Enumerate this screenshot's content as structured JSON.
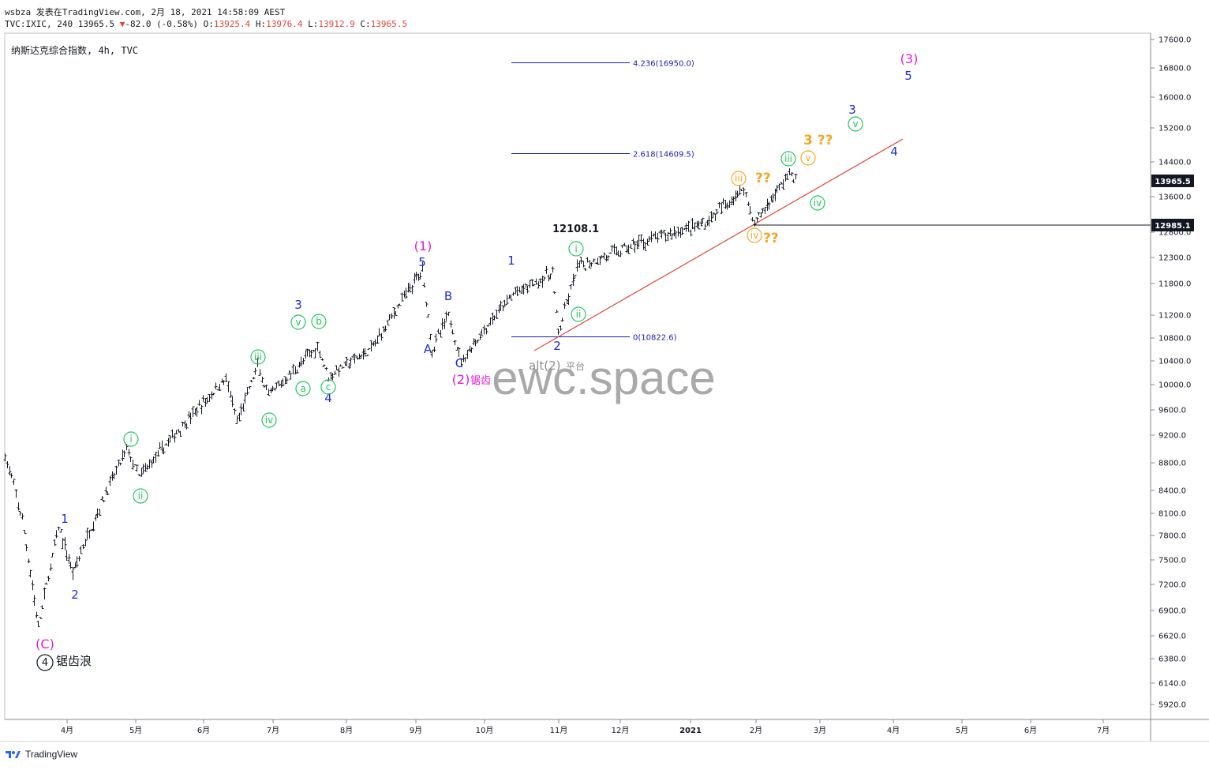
{
  "header": {
    "user": "wsbza",
    "published_text": "发表在TradingView.com, 2月 18, 2021 14:58:09 AEST",
    "symbol": "TVC:IXIC, 240",
    "last": "13965.5",
    "arrow": "▼",
    "change": "-82.0 (-0.58%)",
    "o_label": "O:",
    "o": "13925.4",
    "h_label": "H:",
    "h": "13976.4",
    "l_label": "L:",
    "l": "13912.9",
    "c_label": "C:",
    "c": "13965.5"
  },
  "chart_title": "纳斯达克综合指数, 4h, TVC",
  "watermark": "ewc.space",
  "footer": {
    "brand": "TradingView"
  },
  "colors": {
    "bars": "#131722",
    "trendline": "#e0443a",
    "fib": "#1b1bb3",
    "wave_blue": "#1f2bd6",
    "wave_green": "#22c55e",
    "wave_orange": "#f5a623",
    "wave_magenta": "#e21bd1",
    "price_tag": "#131722"
  },
  "chart_data": {
    "type": "ohlc-bar",
    "interval": "4h",
    "y_axis_ticks": [
      "17600.0",
      "16800.0",
      "16000.0",
      "15200.0",
      "14400.0",
      "13600.0",
      "12800.0",
      "12300.0",
      "11800.0",
      "11200.0",
      "10800.0",
      "10400.0",
      "10000.0",
      "9600.0",
      "9200.0",
      "8800.0",
      "8400.0",
      "8100.0",
      "7800.0",
      "7500.0",
      "7200.0",
      "6900.0",
      "6620.0",
      "6380.0",
      "6140.0",
      "5920.0"
    ],
    "x_axis_ticks": [
      "4月",
      "5月",
      "6月",
      "7月",
      "8月",
      "9月",
      "10月",
      "11月",
      "12月",
      "2021",
      "2月",
      "3月",
      "4月",
      "5月",
      "6月",
      "7月"
    ],
    "price_tags": {
      "last": "13965.5",
      "level": "12985.1"
    },
    "fib_levels": [
      {
        "label": "4.236(16950.0)",
        "value": 16950.0
      },
      {
        "label": "2.618(14609.5)",
        "value": 14609.5
      },
      {
        "label": "0(10822.6)",
        "value": 10822.6
      }
    ],
    "high_label": "12108.1",
    "path_points": [
      [
        "3月",
        8900
      ],
      [
        "3月",
        8000
      ],
      [
        "3月",
        6700
      ],
      [
        "4月",
        7900
      ],
      [
        "4月",
        7350
      ],
      [
        "5月",
        9000
      ],
      [
        "5月",
        8600
      ],
      [
        "6月",
        10100
      ],
      [
        "6月",
        9400
      ],
      [
        "7月",
        10300
      ],
      [
        "7月",
        9800
      ],
      [
        "7月",
        10650
      ],
      [
        "8月",
        10150
      ],
      [
        "8月",
        10600
      ],
      [
        "9月",
        12070
      ],
      [
        "9月",
        10600
      ],
      [
        "9月",
        11200
      ],
      [
        "10月",
        10400
      ],
      [
        "10月",
        11600
      ],
      [
        "10月",
        12000
      ],
      [
        "11月",
        10850
      ],
      [
        "11月",
        12100
      ],
      [
        "12月",
        12600
      ],
      [
        "2021",
        13000
      ],
      [
        "2月",
        13800
      ],
      [
        "2月",
        13000
      ],
      [
        "2月",
        14150
      ],
      [
        "2月",
        13965
      ]
    ],
    "wave_labels": [
      {
        "text": "1",
        "color": "blue"
      },
      {
        "text": "2",
        "color": "blue"
      },
      {
        "text": "3",
        "color": "blue"
      },
      {
        "text": "4",
        "color": "blue"
      },
      {
        "text": "5",
        "color": "blue"
      },
      {
        "text": "A",
        "color": "blue"
      },
      {
        "text": "B",
        "color": "blue"
      },
      {
        "text": "C",
        "color": "blue"
      },
      {
        "text": "(1)",
        "color": "magenta"
      },
      {
        "text": "(2)",
        "color": "magenta"
      },
      {
        "text": "(3)",
        "color": "magenta"
      },
      {
        "text": "(C)",
        "color": "magenta"
      },
      {
        "text": "锯齿",
        "color": "magenta"
      },
      {
        "text": "锯齿浪",
        "color": "black"
      },
      {
        "text": "4",
        "color": "black"
      },
      {
        "text": "alt(2)",
        "color": "gray"
      },
      {
        "text": "平台",
        "color": "gray"
      },
      {
        "text": "i",
        "color": "green"
      },
      {
        "text": "ii",
        "color": "green"
      },
      {
        "text": "iii",
        "color": "green"
      },
      {
        "text": "iv",
        "color": "green"
      },
      {
        "text": "v",
        "color": "green"
      },
      {
        "text": "a",
        "color": "green"
      },
      {
        "text": "b",
        "color": "green"
      },
      {
        "text": "c",
        "color": "green"
      },
      {
        "text": "iii",
        "color": "orange"
      },
      {
        "text": "iv",
        "color": "orange"
      },
      {
        "text": "v",
        "color": "orange"
      },
      {
        "text": "??",
        "color": "orange"
      },
      {
        "text": "3 ??",
        "color": "orange"
      }
    ]
  }
}
